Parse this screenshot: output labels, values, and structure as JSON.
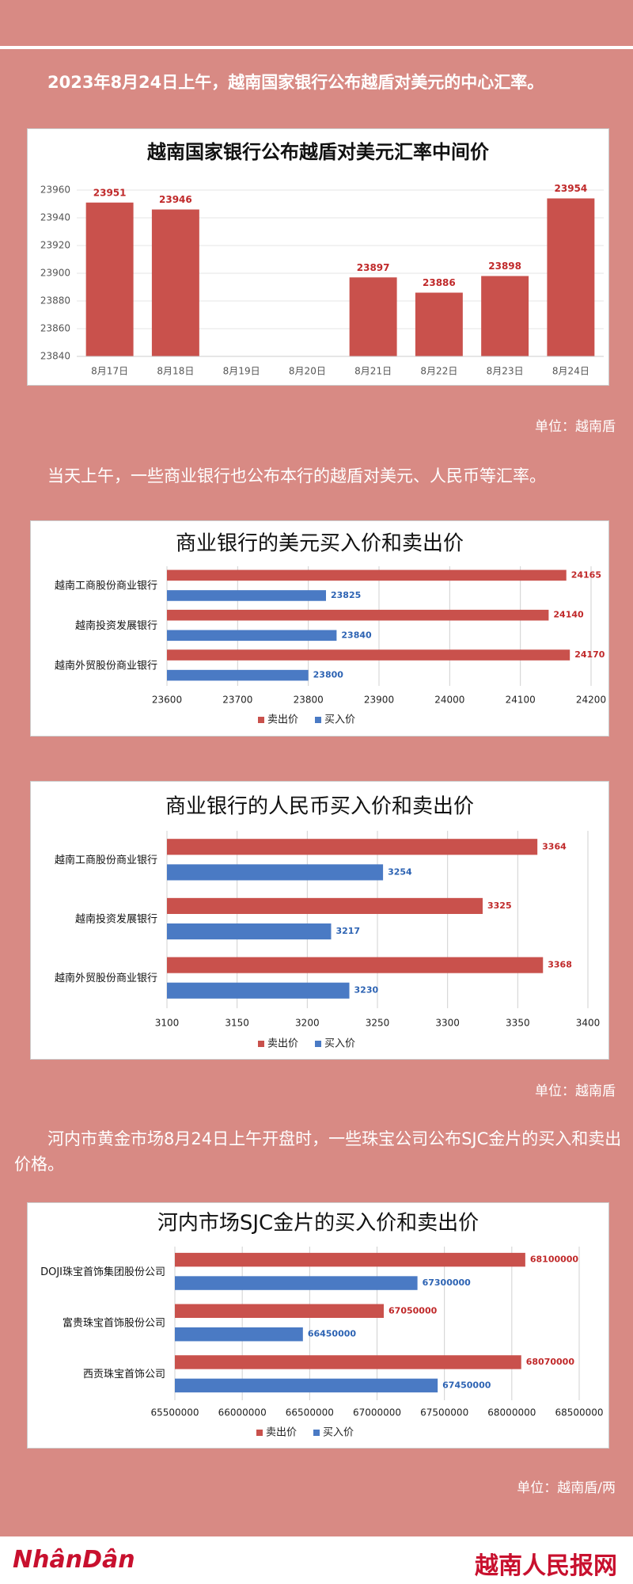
{
  "paragraphs": [
    "2023年8月24日上午，越南国家银行公布越盾对美元的中心汇率。",
    "当天上午，一些商业银行也公布本行的越盾对美元、人民币等汇率。",
    "河内市黄金市场8月24日上午开盘时，一些珠宝公司公布SJC金片的买入和卖出价格。"
  ],
  "units": [
    "单位：越南盾",
    "单位：越南盾",
    "单位：越南盾/两"
  ],
  "footer": {
    "logo": "NhânDân",
    "site": "越南人民报网"
  },
  "chart_data": [
    {
      "type": "bar",
      "title": "越南国家银行公布越盾对美元汇率中间价",
      "categories": [
        "8月17日",
        "8月18日",
        "8月19日",
        "8月20日",
        "8月21日",
        "8月22日",
        "8月23日",
        "8月24日"
      ],
      "values": [
        23951,
        23946,
        null,
        null,
        23897,
        23886,
        23898,
        23954
      ],
      "color": "#c9514c",
      "ylim": [
        23840,
        23960
      ],
      "yticks": [
        23840,
        23860,
        23880,
        23900,
        23920,
        23940,
        23960
      ],
      "grid": true
    },
    {
      "type": "barh",
      "title": "商业银行的美元买入价和卖出价",
      "categories": [
        "越南工商股份商业银行",
        "越南投资发展银行",
        "越南外贸股份商业银行"
      ],
      "series": [
        {
          "name": "卖出价",
          "color": "#c9514c",
          "values": [
            24165,
            24140,
            24170
          ]
        },
        {
          "name": "买入价",
          "color": "#4a7ac4",
          "values": [
            23825,
            23840,
            23800
          ]
        }
      ],
      "xlim": [
        23600,
        24200
      ],
      "xticks": [
        23600,
        23700,
        23800,
        23900,
        24000,
        24100,
        24200
      ],
      "grid": true
    },
    {
      "type": "barh",
      "title": "商业银行的人民币买入价和卖出价",
      "categories": [
        "越南工商股份商业银行",
        "越南投资发展银行",
        "越南外贸股份商业银行"
      ],
      "series": [
        {
          "name": "卖出价",
          "color": "#c9514c",
          "values": [
            3364,
            3325,
            3368
          ]
        },
        {
          "name": "买入价",
          "color": "#4a7ac4",
          "values": [
            3254,
            3217,
            3230
          ]
        }
      ],
      "xlim": [
        3100,
        3400
      ],
      "xticks": [
        3100,
        3150,
        3200,
        3250,
        3300,
        3350,
        3400
      ],
      "grid": true
    },
    {
      "type": "barh",
      "title": "河内市场SJC金片的买入价和卖出价",
      "categories": [
        "DOJI珠宝首饰集团股份公司",
        "富贵珠宝首饰股份公司",
        "西贡珠宝首饰公司"
      ],
      "series": [
        {
          "name": "卖出价",
          "color": "#c9514c",
          "values": [
            68100000,
            67050000,
            68070000
          ]
        },
        {
          "name": "买入价",
          "color": "#4a7ac4",
          "values": [
            67300000,
            66450000,
            67450000
          ]
        }
      ],
      "xlim": [
        65500000,
        68500000
      ],
      "xticks": [
        65500000,
        66000000,
        66500000,
        67000000,
        67500000,
        68000000,
        68500000
      ],
      "grid": true
    }
  ]
}
